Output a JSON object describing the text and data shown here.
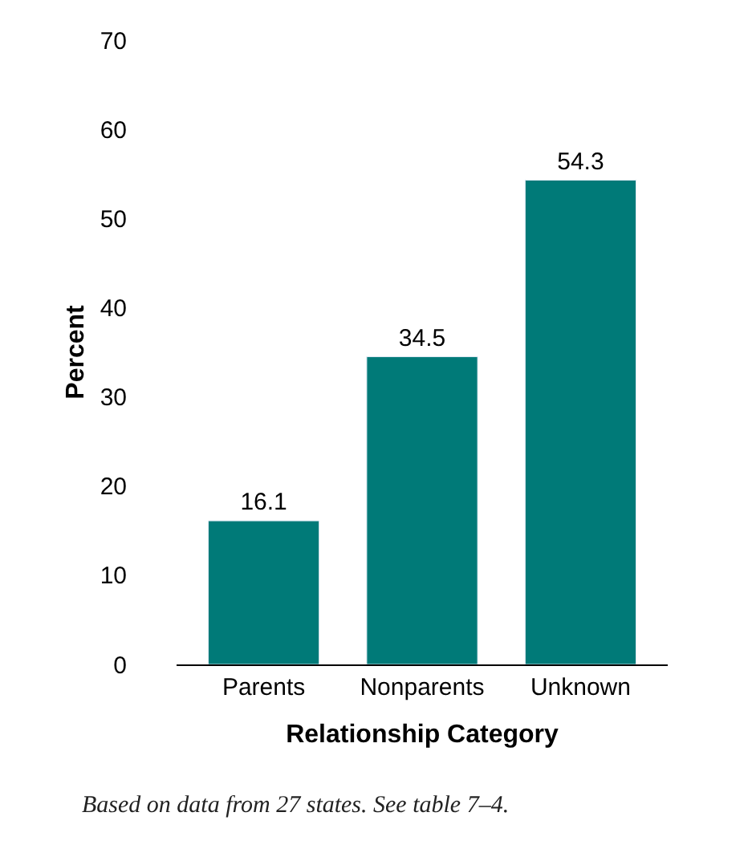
{
  "chart_data": {
    "type": "bar",
    "xlabel": "Relationship Category",
    "ylabel": "Percent",
    "categories": [
      "Parents",
      "Nonparents",
      "Unknown"
    ],
    "values": [
      16.1,
      34.5,
      54.3
    ],
    "color": "#007a78",
    "ylim": [
      0,
      70
    ],
    "yticks": [
      0,
      10,
      20,
      30,
      40,
      50,
      60,
      70
    ],
    "data_labels": true,
    "annotations": [
      "Based on data from 27 states. See table 7–4."
    ]
  }
}
